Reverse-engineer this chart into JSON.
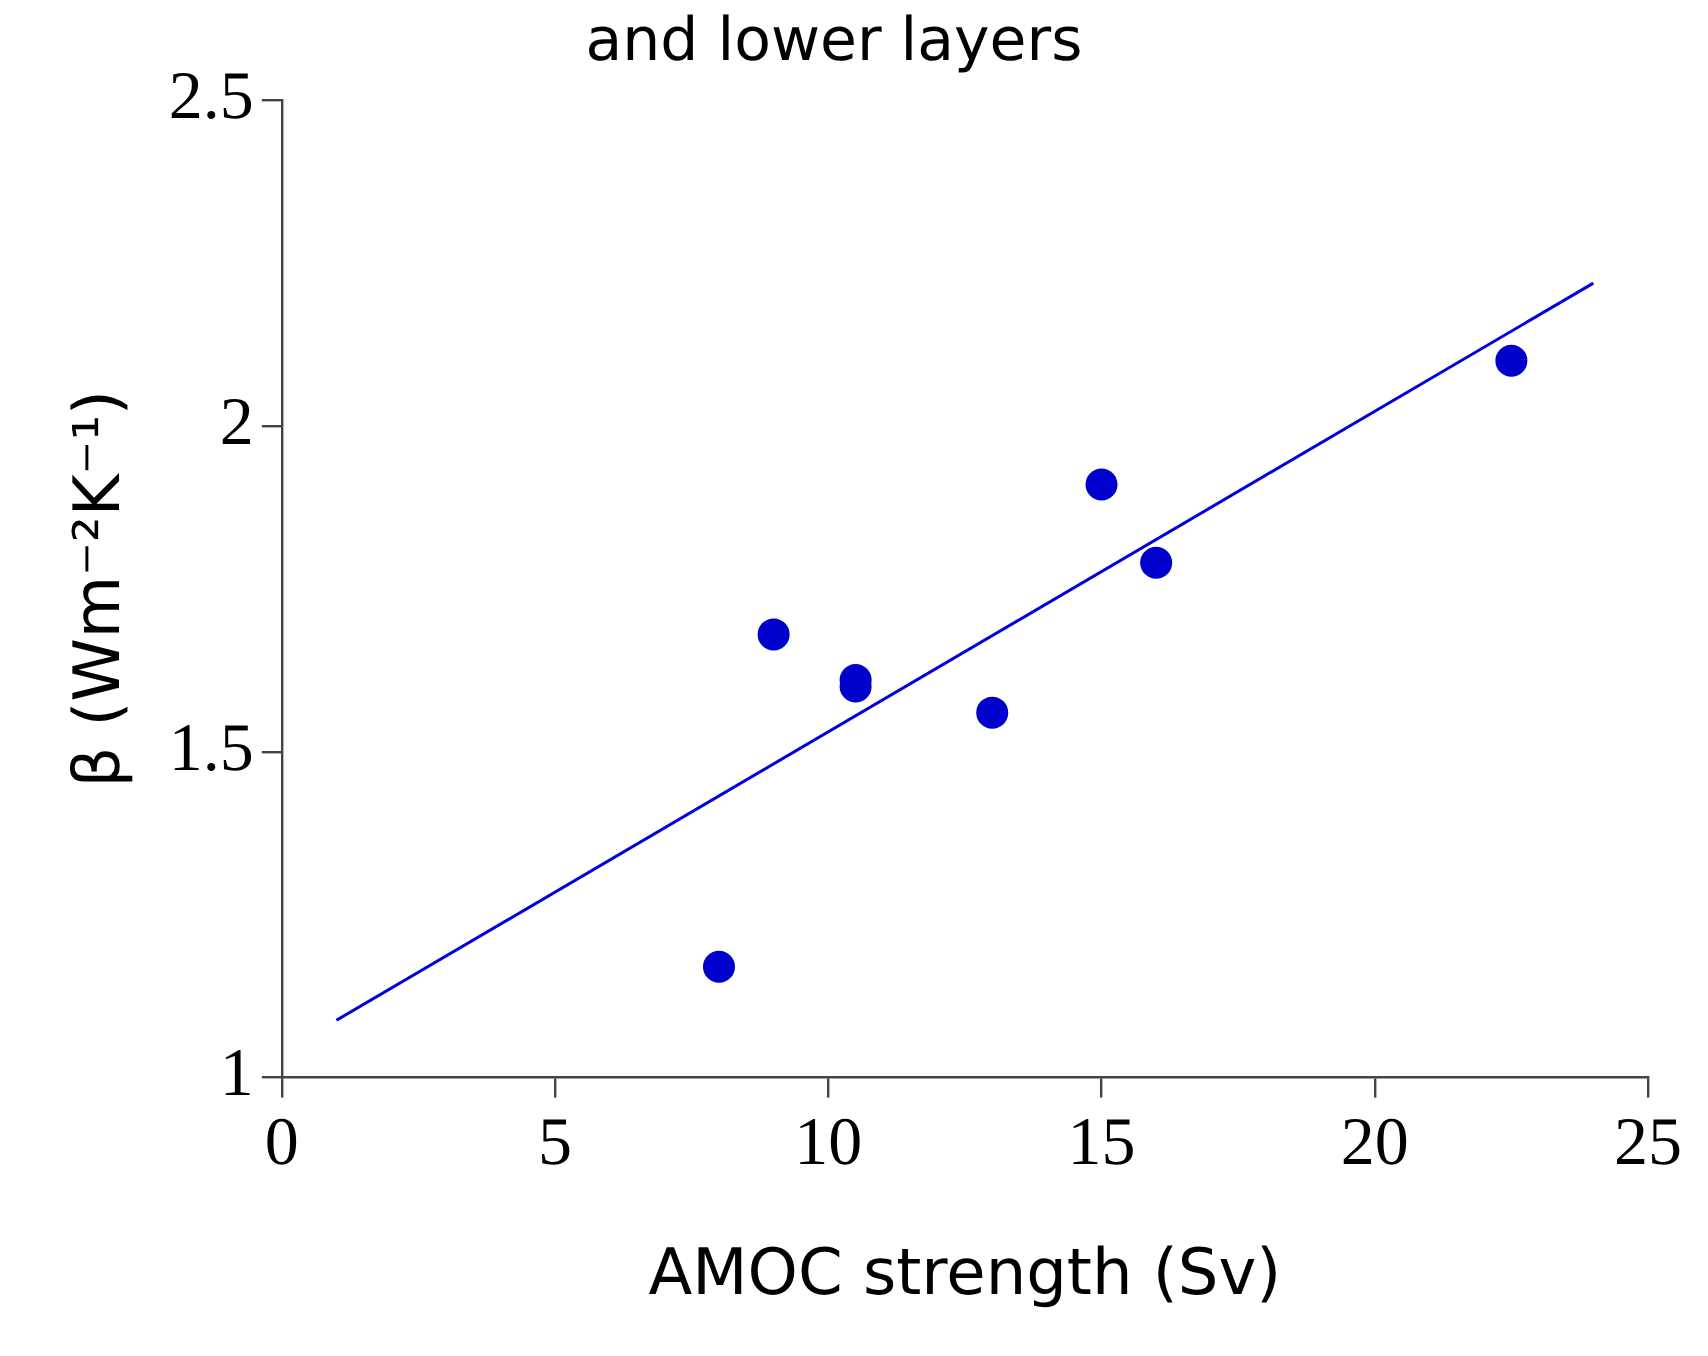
{
  "chart_data": {
    "type": "scatter",
    "title": "and lower layers",
    "xlabel": "AMOC strength (Sv)",
    "ylabel": "β (Wm⁻²K⁻¹)",
    "xlim": [
      0,
      25
    ],
    "xticks": [
      0,
      5,
      10,
      15,
      20,
      25
    ],
    "ylim": [
      1,
      2.5
    ],
    "yticks": [
      1,
      1.5,
      2,
      2.5
    ],
    "grid": false,
    "legend": false,
    "marker": "circle",
    "series": [
      {
        "color": "#0000cc",
        "x": [
          8,
          9,
          10.5,
          10.5,
          13,
          15,
          16,
          22.5
        ],
        "values": [
          1.17,
          1.68,
          1.61,
          1.6,
          1.56,
          1.91,
          1.79,
          2.1
        ]
      },
      {
        "type": "line",
        "marker": "none",
        "color": "#0000dd",
        "x": [
          1,
          24
        ],
        "values": [
          1.088,
          2.219
        ]
      }
    ]
  }
}
